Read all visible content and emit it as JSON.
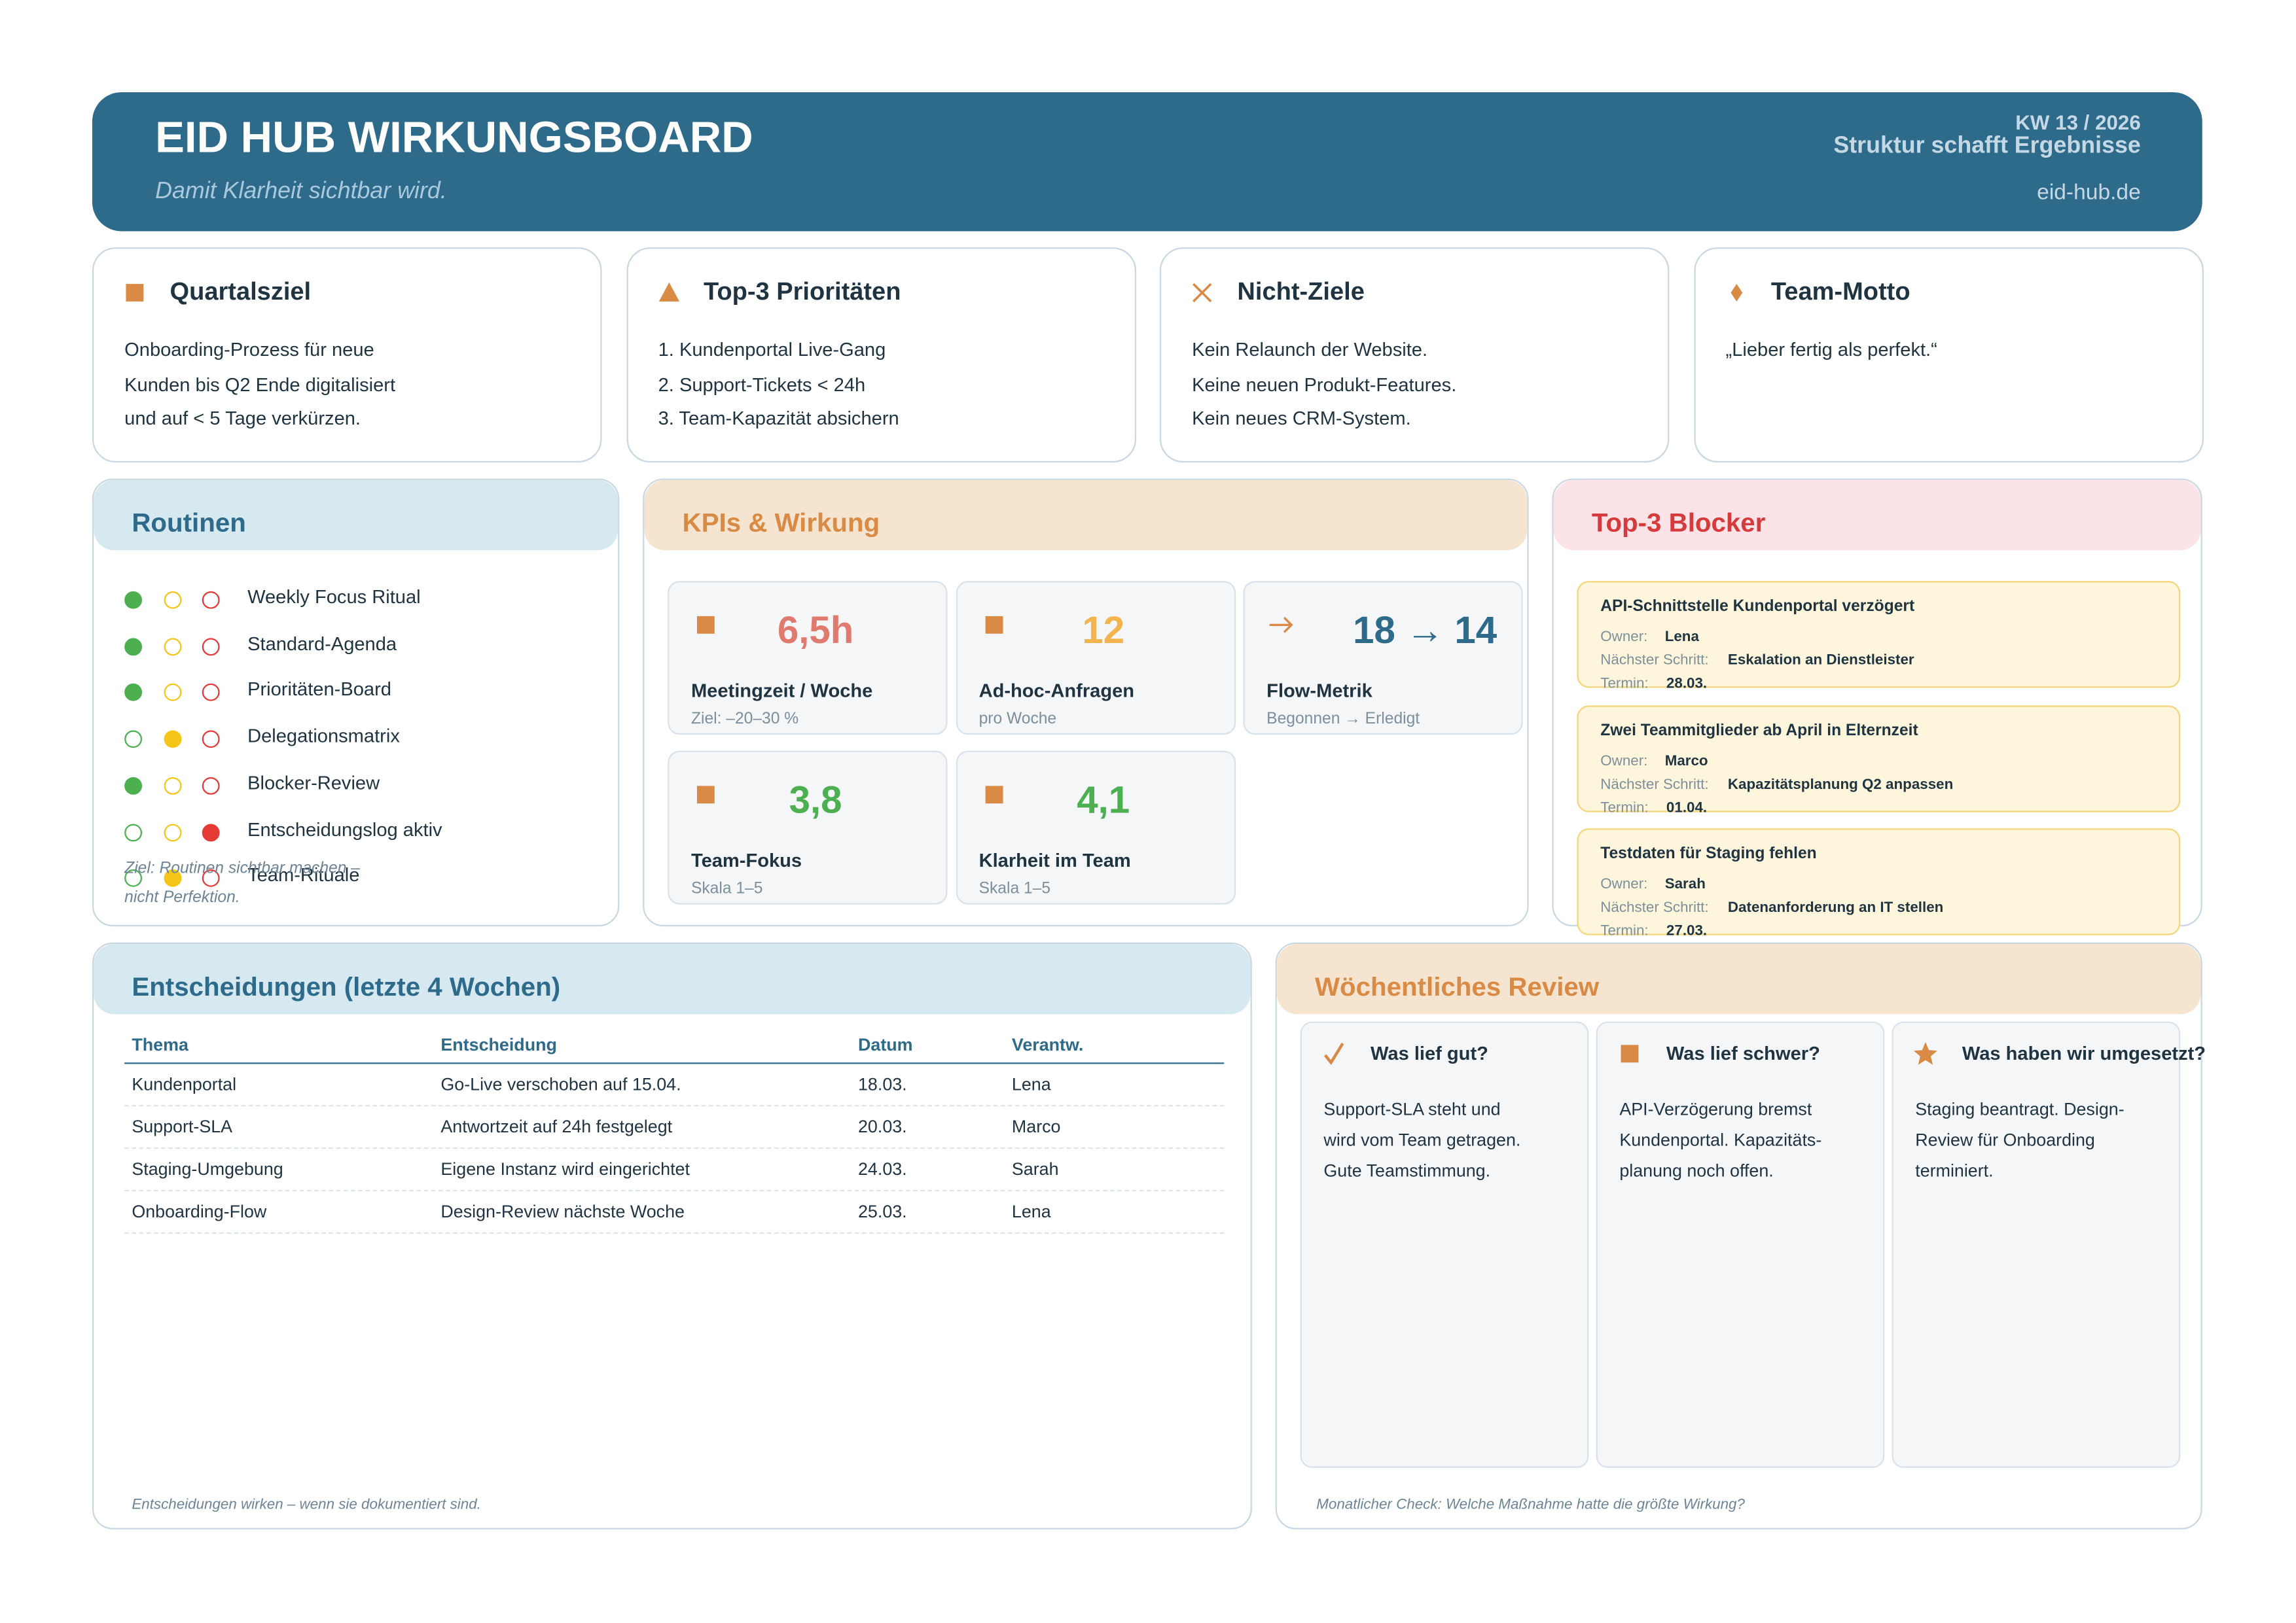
{
  "header": {
    "title": "EID HUB WIRKUNGSBOARD",
    "subtitle": "Damit Klarheit sichtbar wird.",
    "week": "KW 13 / 2026",
    "slogan": "Struktur schafft Ergebnisse",
    "url": "eid-hub.de"
  },
  "cards": [
    {
      "title": "Quartalsziel",
      "lines": [
        "Onboarding-Prozess für neue",
        "Kunden bis Q2 Ende digitalisiert",
        "und auf < 5 Tage verkürzen."
      ]
    },
    {
      "title": "Top-3 Prioritäten",
      "lines": [
        "1. Kundenportal Live-Gang",
        "2. Support-Tickets < 24h",
        "3. Team-Kapazität absichern"
      ]
    },
    {
      "title": "Nicht-Ziele",
      "lines": [
        "Kein Relaunch der Website.",
        "Keine neuen Produkt-Features.",
        "Kein neues CRM-System."
      ]
    },
    {
      "title": "Team-Motto",
      "lines": [
        "„Lieber fertig als perfekt.“"
      ]
    }
  ],
  "routines": {
    "title": "Routinen",
    "items": [
      {
        "label": "Weekly Focus Ritual",
        "status": "green"
      },
      {
        "label": "Standard-Agenda",
        "status": "green"
      },
      {
        "label": "Prioritäten-Board",
        "status": "green"
      },
      {
        "label": "Delegationsmatrix",
        "status": "yellow"
      },
      {
        "label": "Blocker-Review",
        "status": "green"
      },
      {
        "label": "Entscheidungslog aktiv",
        "status": "red"
      },
      {
        "label": "Team-Rituale",
        "status": "yellow"
      }
    ],
    "note": [
      "Ziel: Routinen sichtbar machen –",
      "nicht Perfektion."
    ]
  },
  "kpis": {
    "title": "KPIs & Wirkung",
    "tiles": [
      {
        "value": "6,5h",
        "label": "Meetingzeit / Woche",
        "note": "Ziel: –20–30 %",
        "color": "#e07a6e"
      },
      {
        "value": "12",
        "label": "Ad-hoc-Anfragen",
        "note": "pro Woche",
        "color": "#f3b34d"
      },
      {
        "value": "18 → 14",
        "label": "Flow-Metrik",
        "note": "Begonnen → Erledigt",
        "color": "#2e6a8a"
      },
      {
        "value": "3,8",
        "label": "Team-Fokus",
        "note": "Skala 1–5",
        "color": "#4caf50"
      },
      {
        "value": "4,1",
        "label": "Klarheit im Team",
        "note": "Skala 1–5",
        "color": "#4caf50"
      }
    ]
  },
  "blockers": {
    "title": "Top-3 Blocker",
    "owner_label": "Owner:",
    "next_label": "Nächster Schritt:",
    "due_label": "Termin:",
    "items": [
      {
        "title": "API-Schnittstelle Kundenportal verzögert",
        "owner": "Lena",
        "next": "Eskalation an Dienstleister",
        "due": "28.03."
      },
      {
        "title": "Zwei Teammitglieder ab April in Elternzeit",
        "owner": "Marco",
        "next": "Kapazitätsplanung Q2 anpassen",
        "due": "01.04."
      },
      {
        "title": "Testdaten für Staging fehlen",
        "owner": "Sarah",
        "next": "Datenanforderung an IT stellen",
        "due": "27.03."
      }
    ]
  },
  "decisions": {
    "title": "Entscheidungen (letzte 4 Wochen)",
    "columns": [
      "Thema",
      "Entscheidung",
      "Datum",
      "Verantw."
    ],
    "rows": [
      [
        "Kundenportal",
        "Go-Live verschoben auf 15.04.",
        "18.03.",
        "Lena"
      ],
      [
        "Support-SLA",
        "Antwortzeit auf 24h festgelegt",
        "20.03.",
        "Marco"
      ],
      [
        "Staging-Umgebung",
        "Eigene Instanz wird eingerichtet",
        "24.03.",
        "Sarah"
      ],
      [
        "Onboarding-Flow",
        "Design-Review nächste Woche",
        "25.03.",
        "Lena"
      ]
    ],
    "note": "Entscheidungen wirken – wenn sie dokumentiert sind."
  },
  "review": {
    "title": "Wöchentliches Review",
    "columns": [
      {
        "title": "Was lief gut?",
        "lines": [
          "Support-SLA steht und",
          "wird vom Team getragen.",
          "Gute Teamstimmung."
        ]
      },
      {
        "title": "Was lief schwer?",
        "lines": [
          "API-Verzögerung bremst",
          "Kundenportal. Kapazitäts-",
          "planung noch offen."
        ]
      },
      {
        "title": "Was haben wir umgesetzt?",
        "lines": [
          "Staging beantragt. Design-",
          "Review für Onboarding",
          "terminiert."
        ]
      }
    ],
    "note": "Monatlicher Check: Welche Maßnahme hatte die größte Wirkung?"
  }
}
